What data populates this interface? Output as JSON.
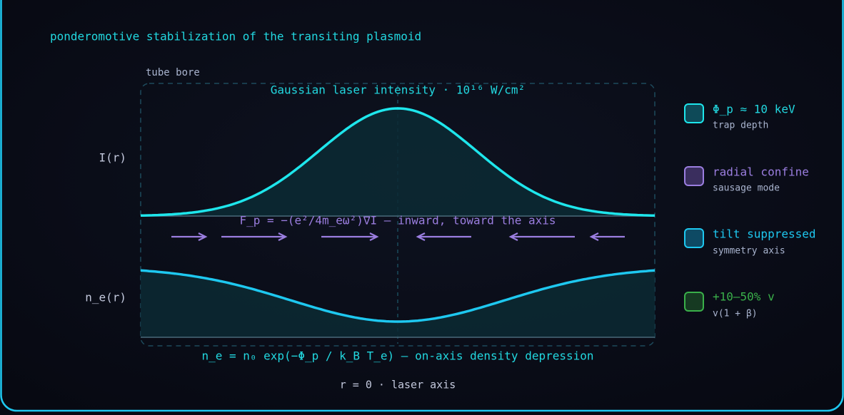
{
  "header": {
    "title": "ponderomotive stabilization of the transiting plasmoid"
  },
  "diagram": {
    "bore_label": "tube bore",
    "intensity_title": "Gaussian laser intensity · 10¹⁶ W/cm²",
    "intensity_axis": "I(r)",
    "force_label": "F_p = −(e²/4m_eω²)∇I — inward, toward the axis",
    "density_axis": "n_e(r)",
    "density_label": "n_e = n₀ exp(−Φ_p / k_B T_e) — on-axis density depression",
    "axis_label": "r = 0 · laser axis"
  },
  "legend": [
    {
      "title": "Φ_p ≈ 10 keV",
      "subtitle": "trap depth"
    },
    {
      "title": "radial confine",
      "subtitle": "sausage mode"
    },
    {
      "title": "tilt suppressed",
      "subtitle": "symmetry axis"
    },
    {
      "title": "+10–50% v",
      "subtitle": "v(1 + β)"
    }
  ]
}
